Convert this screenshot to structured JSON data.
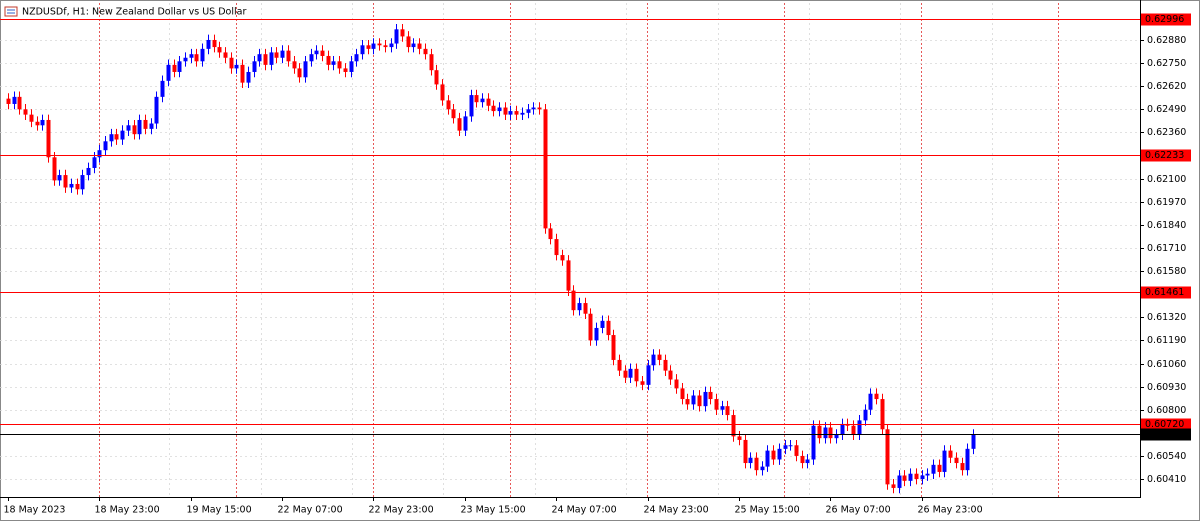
{
  "chart_data": {
    "type": "candlestick",
    "title": "NZDUSDf, H1:  New Zealand Dollar vs US Dollar",
    "up_color": "#0000ff",
    "down_color": "#ff0000",
    "level_color": "#ff0000",
    "price_color": "#000000",
    "grid": true,
    "ylim": [
      0.60309,
      0.63088
    ],
    "yticks": [
      {
        "value": 0.6041,
        "label": "0.60410"
      },
      {
        "value": 0.6054,
        "label": "0.60540"
      },
      {
        "value": 0.608,
        "label": "0.60800"
      },
      {
        "value": 0.6093,
        "label": "0.60930"
      },
      {
        "value": 0.6106,
        "label": "0.61060"
      },
      {
        "value": 0.6119,
        "label": "0.61190"
      },
      {
        "value": 0.6132,
        "label": "0.61320"
      },
      {
        "value": 0.6158,
        "label": "0.61580"
      },
      {
        "value": 0.6171,
        "label": "0.61710"
      },
      {
        "value": 0.6184,
        "label": "0.61840"
      },
      {
        "value": 0.6197,
        "label": "0.61970"
      },
      {
        "value": 0.621,
        "label": "0.62100"
      },
      {
        "value": 0.6236,
        "label": "0.62360"
      },
      {
        "value": 0.6249,
        "label": "0.62490"
      },
      {
        "value": 0.6262,
        "label": "0.62620"
      },
      {
        "value": 0.6275,
        "label": "0.62750"
      },
      {
        "value": 0.6288,
        "label": "0.62880"
      }
    ],
    "levels": [
      {
        "value": 0.62996,
        "label": "0.62996"
      },
      {
        "value": 0.62233,
        "label": "0.62233"
      },
      {
        "value": 0.61461,
        "label": "0.61461"
      },
      {
        "value": 0.6072,
        "label": "0.60720"
      }
    ],
    "current_price": {
      "value": 0.60662,
      "label": "0.60662"
    },
    "categories": [
      "18 May 2023",
      null,
      null,
      null,
      null,
      null,
      null,
      null,
      null,
      null,
      null,
      null,
      null,
      null,
      null,
      null,
      "18 May 23:00",
      null,
      null,
      null,
      null,
      null,
      null,
      null,
      null,
      null,
      null,
      null,
      null,
      null,
      null,
      null,
      "19 May 15:00",
      null,
      null,
      null,
      null,
      null,
      null,
      null,
      null,
      null,
      null,
      null,
      null,
      null,
      null,
      null,
      "22 May 07:00",
      null,
      null,
      null,
      null,
      null,
      null,
      null,
      null,
      null,
      null,
      null,
      null,
      null,
      null,
      null,
      "22 May 23:00",
      null,
      null,
      null,
      null,
      null,
      null,
      null,
      null,
      null,
      null,
      null,
      null,
      null,
      null,
      null,
      "23 May 15:00",
      null,
      null,
      null,
      null,
      null,
      null,
      null,
      null,
      null,
      null,
      null,
      null,
      null,
      null,
      null,
      "24 May 07:00",
      null,
      null,
      null,
      null,
      null,
      null,
      null,
      null,
      null,
      null,
      null,
      null,
      null,
      null,
      null,
      "24 May 23:00",
      null,
      null,
      null,
      null,
      null,
      null,
      null,
      null,
      null,
      null,
      null,
      null,
      null,
      null,
      null,
      "25 May 15:00",
      null,
      null,
      null,
      null,
      null,
      null,
      null,
      null,
      null,
      null,
      null,
      null,
      null,
      null,
      null,
      "26 May 07:00",
      null,
      null,
      null,
      null,
      null,
      null,
      null,
      null,
      null,
      null,
      null,
      null,
      null,
      null,
      null,
      "26 May 23:00",
      null,
      null,
      null,
      null,
      null,
      null,
      null,
      null,
      null
    ],
    "open": [
      0.6255,
      0.6252,
      0.6256,
      0.6249,
      0.6246,
      0.6242,
      0.624,
      0.6243,
      0.6222,
      0.6209,
      0.6212,
      0.6205,
      0.6207,
      0.6204,
      0.6212,
      0.6216,
      0.6222,
      0.6226,
      0.6231,
      0.6235,
      0.6232,
      0.6237,
      0.624,
      0.6235,
      0.6243,
      0.6238,
      0.6241,
      0.6256,
      0.6265,
      0.6274,
      0.627,
      0.6276,
      0.6278,
      0.628,
      0.6276,
      0.6283,
      0.6288,
      0.6284,
      0.6281,
      0.6278,
      0.6272,
      0.6274,
      0.6264,
      0.627,
      0.6276,
      0.628,
      0.6274,
      0.6281,
      0.6278,
      0.6282,
      0.6276,
      0.6272,
      0.6267,
      0.6276,
      0.628,
      0.6282,
      0.6279,
      0.6274,
      0.6276,
      0.6272,
      0.627,
      0.6276,
      0.628,
      0.6285,
      0.6283,
      0.6286,
      0.6285,
      0.6284,
      0.6286,
      0.6294,
      0.629,
      0.6284,
      0.6286,
      0.6283,
      0.628,
      0.6271,
      0.6263,
      0.6254,
      0.6249,
      0.6244,
      0.6237,
      0.6245,
      0.6257,
      0.6253,
      0.6255,
      0.6251,
      0.6248,
      0.625,
      0.6246,
      0.6248,
      0.6246,
      0.6247,
      0.6249,
      0.625,
      0.6249,
      0.6182,
      0.6176,
      0.6167,
      0.6164,
      0.6147,
      0.6136,
      0.614,
      0.6134,
      0.6119,
      0.6126,
      0.613,
      0.6122,
      0.6108,
      0.6102,
      0.6098,
      0.6103,
      0.6096,
      0.6094,
      0.6105,
      0.6111,
      0.6108,
      0.6102,
      0.6097,
      0.6092,
      0.6086,
      0.6083,
      0.6088,
      0.6082,
      0.609,
      0.6086,
      0.608,
      0.6082,
      0.6077,
      0.6065,
      0.6063,
      0.605,
      0.6053,
      0.6046,
      0.6048,
      0.6057,
      0.6052,
      0.6058,
      0.606,
      0.606,
      0.6054,
      0.605,
      0.6052,
      0.6071,
      0.6064,
      0.607,
      0.6064,
      0.6066,
      0.6072,
      0.6071,
      0.6066,
      0.6074,
      0.608,
      0.6089,
      0.6086,
      0.6069,
      0.6038,
      0.6036,
      0.6043,
      0.604,
      0.6044,
      0.6041,
      0.6043,
      0.6044,
      0.6049,
      0.6045,
      0.6057,
      0.6053,
      0.605,
      0.6046,
      0.6058
    ],
    "high": [
      0.6258,
      0.6259,
      0.6259,
      0.6252,
      0.6249,
      0.6245,
      0.6246,
      0.6246,
      0.6225,
      0.6215,
      0.6215,
      0.621,
      0.621,
      0.6215,
      0.6219,
      0.6225,
      0.6229,
      0.6234,
      0.6238,
      0.6238,
      0.624,
      0.6243,
      0.6243,
      0.6246,
      0.6246,
      0.6244,
      0.6259,
      0.6268,
      0.6277,
      0.6277,
      0.6279,
      0.6281,
      0.6283,
      0.6283,
      0.6286,
      0.6291,
      0.6291,
      0.6287,
      0.6284,
      0.6281,
      0.6277,
      0.6277,
      0.6273,
      0.6279,
      0.6283,
      0.6283,
      0.6284,
      0.6284,
      0.6285,
      0.6285,
      0.6279,
      0.6275,
      0.6279,
      0.6283,
      0.6285,
      0.6285,
      0.6282,
      0.6279,
      0.6279,
      0.6275,
      0.6279,
      0.6283,
      0.6288,
      0.6288,
      0.6289,
      0.6289,
      0.6288,
      0.6289,
      0.6297,
      0.6297,
      0.6293,
      0.6289,
      0.6289,
      0.6286,
      0.6283,
      0.6274,
      0.6266,
      0.6257,
      0.6252,
      0.6247,
      0.6248,
      0.626,
      0.626,
      0.6258,
      0.6258,
      0.6254,
      0.6253,
      0.6253,
      0.6251,
      0.6251,
      0.625,
      0.6252,
      0.6253,
      0.6253,
      0.6252,
      0.6185,
      0.6179,
      0.617,
      0.6167,
      0.615,
      0.6143,
      0.6143,
      0.6137,
      0.6129,
      0.6133,
      0.6133,
      0.6125,
      0.6111,
      0.6105,
      0.6106,
      0.6106,
      0.6099,
      0.6108,
      0.6114,
      0.6114,
      0.6111,
      0.6105,
      0.61,
      0.6095,
      0.6089,
      0.6091,
      0.6091,
      0.6093,
      0.6093,
      0.6089,
      0.6085,
      0.6085,
      0.608,
      0.6068,
      0.6066,
      0.6056,
      0.6056,
      0.6051,
      0.606,
      0.606,
      0.6061,
      0.6063,
      0.6063,
      0.6063,
      0.6057,
      0.6055,
      0.6074,
      0.6074,
      0.6073,
      0.6073,
      0.6069,
      0.6075,
      0.6075,
      0.6074,
      0.6077,
      0.6083,
      0.6092,
      0.6092,
      0.6089,
      0.6072,
      0.6041,
      0.6046,
      0.6046,
      0.6047,
      0.6047,
      0.6046,
      0.6047,
      0.6052,
      0.6052,
      0.606,
      0.606,
      0.6056,
      0.6053,
      0.6061,
      0.6069
    ],
    "low": [
      0.6249,
      0.6249,
      0.6246,
      0.6243,
      0.6239,
      0.6237,
      0.6237,
      0.6219,
      0.6206,
      0.6206,
      0.6202,
      0.6202,
      0.6201,
      0.6201,
      0.6209,
      0.6213,
      0.6219,
      0.6223,
      0.6228,
      0.6229,
      0.6229,
      0.6234,
      0.6232,
      0.6232,
      0.6235,
      0.6235,
      0.6238,
      0.6253,
      0.6262,
      0.6267,
      0.6267,
      0.6273,
      0.6275,
      0.6273,
      0.6273,
      0.628,
      0.6281,
      0.6278,
      0.6275,
      0.6269,
      0.6269,
      0.6261,
      0.6261,
      0.6267,
      0.6273,
      0.6271,
      0.6271,
      0.6275,
      0.6275,
      0.6273,
      0.6269,
      0.6264,
      0.6264,
      0.6273,
      0.6277,
      0.6276,
      0.6271,
      0.6271,
      0.6269,
      0.6267,
      0.6267,
      0.6273,
      0.6277,
      0.628,
      0.628,
      0.6282,
      0.6281,
      0.6281,
      0.6283,
      0.6287,
      0.6281,
      0.6281,
      0.628,
      0.6277,
      0.6268,
      0.626,
      0.6251,
      0.6246,
      0.6241,
      0.6234,
      0.6234,
      0.6242,
      0.625,
      0.625,
      0.6248,
      0.6245,
      0.6245,
      0.6243,
      0.6243,
      0.6243,
      0.6243,
      0.6244,
      0.6246,
      0.6246,
      0.6179,
      0.6173,
      0.6164,
      0.6161,
      0.6144,
      0.6133,
      0.6133,
      0.6131,
      0.6116,
      0.6116,
      0.6123,
      0.6119,
      0.6105,
      0.6099,
      0.6095,
      0.6095,
      0.6093,
      0.6091,
      0.6091,
      0.6102,
      0.6105,
      0.6099,
      0.6094,
      0.6089,
      0.6083,
      0.608,
      0.608,
      0.6079,
      0.6079,
      0.6083,
      0.6077,
      0.6077,
      0.6074,
      0.6062,
      0.606,
      0.6047,
      0.6047,
      0.6043,
      0.6043,
      0.6045,
      0.6049,
      0.6049,
      0.6055,
      0.6057,
      0.6051,
      0.6047,
      0.6047,
      0.6049,
      0.6061,
      0.6061,
      0.6061,
      0.6061,
      0.6063,
      0.6068,
      0.6063,
      0.6063,
      0.6071,
      0.6077,
      0.6083,
      0.6066,
      0.6035,
      0.6033,
      0.6033,
      0.6037,
      0.6037,
      0.6038,
      0.6038,
      0.604,
      0.6041,
      0.6042,
      0.6042,
      0.605,
      0.6047,
      0.6043,
      0.6043,
      0.6055
    ],
    "close": [
      0.6252,
      0.6256,
      0.6249,
      0.6246,
      0.6242,
      0.624,
      0.6243,
      0.6222,
      0.6209,
      0.6212,
      0.6205,
      0.6207,
      0.6204,
      0.6212,
      0.6216,
      0.6222,
      0.6226,
      0.6231,
      0.6235,
      0.6232,
      0.6237,
      0.624,
      0.6235,
      0.6243,
      0.6238,
      0.6241,
      0.6256,
      0.6265,
      0.6274,
      0.627,
      0.6276,
      0.6278,
      0.628,
      0.6276,
      0.6283,
      0.6288,
      0.6284,
      0.6281,
      0.6278,
      0.6272,
      0.6274,
      0.6264,
      0.627,
      0.6276,
      0.628,
      0.6274,
      0.6281,
      0.6278,
      0.6282,
      0.6276,
      0.6272,
      0.6267,
      0.6276,
      0.628,
      0.6282,
      0.6279,
      0.6274,
      0.6276,
      0.6272,
      0.627,
      0.6276,
      0.628,
      0.6285,
      0.6283,
      0.6286,
      0.6285,
      0.6284,
      0.6286,
      0.6294,
      0.629,
      0.6284,
      0.6286,
      0.6283,
      0.628,
      0.6271,
      0.6263,
      0.6254,
      0.6249,
      0.6244,
      0.6237,
      0.6245,
      0.6257,
      0.6253,
      0.6255,
      0.6251,
      0.6248,
      0.625,
      0.6246,
      0.6248,
      0.6246,
      0.6247,
      0.6249,
      0.625,
      0.6249,
      0.6182,
      0.6176,
      0.6167,
      0.6164,
      0.6147,
      0.6136,
      0.614,
      0.6134,
      0.6119,
      0.6126,
      0.613,
      0.6122,
      0.6108,
      0.6102,
      0.6098,
      0.6103,
      0.6096,
      0.6094,
      0.6105,
      0.6111,
      0.6108,
      0.6102,
      0.6097,
      0.6092,
      0.6086,
      0.6083,
      0.6088,
      0.6082,
      0.609,
      0.6086,
      0.608,
      0.6082,
      0.6077,
      0.6065,
      0.6063,
      0.605,
      0.6053,
      0.6046,
      0.6048,
      0.6057,
      0.6052,
      0.6058,
      0.606,
      0.606,
      0.6054,
      0.605,
      0.6052,
      0.6071,
      0.6064,
      0.607,
      0.6064,
      0.6066,
      0.6072,
      0.6071,
      0.6066,
      0.6074,
      0.608,
      0.6089,
      0.6086,
      0.6069,
      0.6038,
      0.6036,
      0.6043,
      0.604,
      0.6044,
      0.6041,
      0.6043,
      0.6044,
      0.6049,
      0.6045,
      0.6057,
      0.6053,
      0.605,
      0.6046,
      0.6058,
      0.60662
    ]
  }
}
